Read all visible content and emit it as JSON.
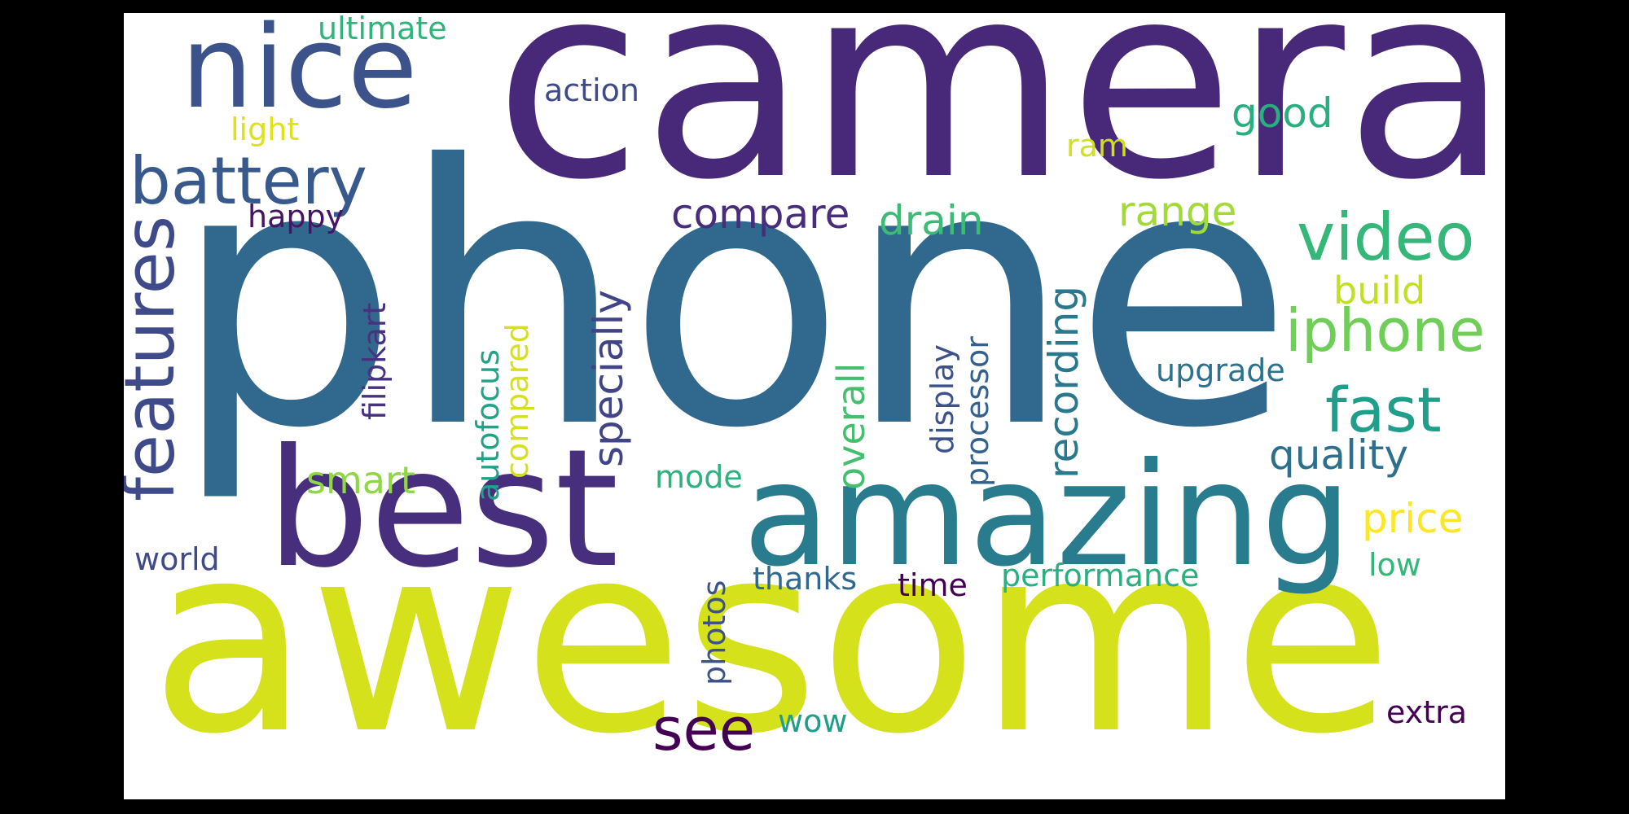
{
  "palette": {
    "background": "#ffffff",
    "frame": "#000000",
    "dark_purple": "#440154",
    "purple": "#482878",
    "indigo": "#3e4a89",
    "blue": "#31688e",
    "teal": "#26828e",
    "green_teal": "#1f9e89",
    "green": "#35b779",
    "light_green": "#6ece58",
    "lime": "#b5de2b",
    "yellow": "#fde725"
  },
  "words": [
    "phone",
    "awesome",
    "camera",
    "best",
    "amazing",
    "nice",
    "battery",
    "features",
    "video",
    "iphone",
    "fast",
    "quality",
    "price",
    "see",
    "good",
    "compare",
    "drain",
    "range",
    "recording",
    "specially",
    "build",
    "smart",
    "overall",
    "display",
    "processor",
    "autofocus",
    "compared",
    "filipkart",
    "upgrade",
    "happy",
    "action",
    "light",
    "ultimate",
    "ram",
    "world",
    "thanks",
    "time",
    "performance",
    "photos",
    "mode",
    "wow",
    "low",
    "extra"
  ]
}
